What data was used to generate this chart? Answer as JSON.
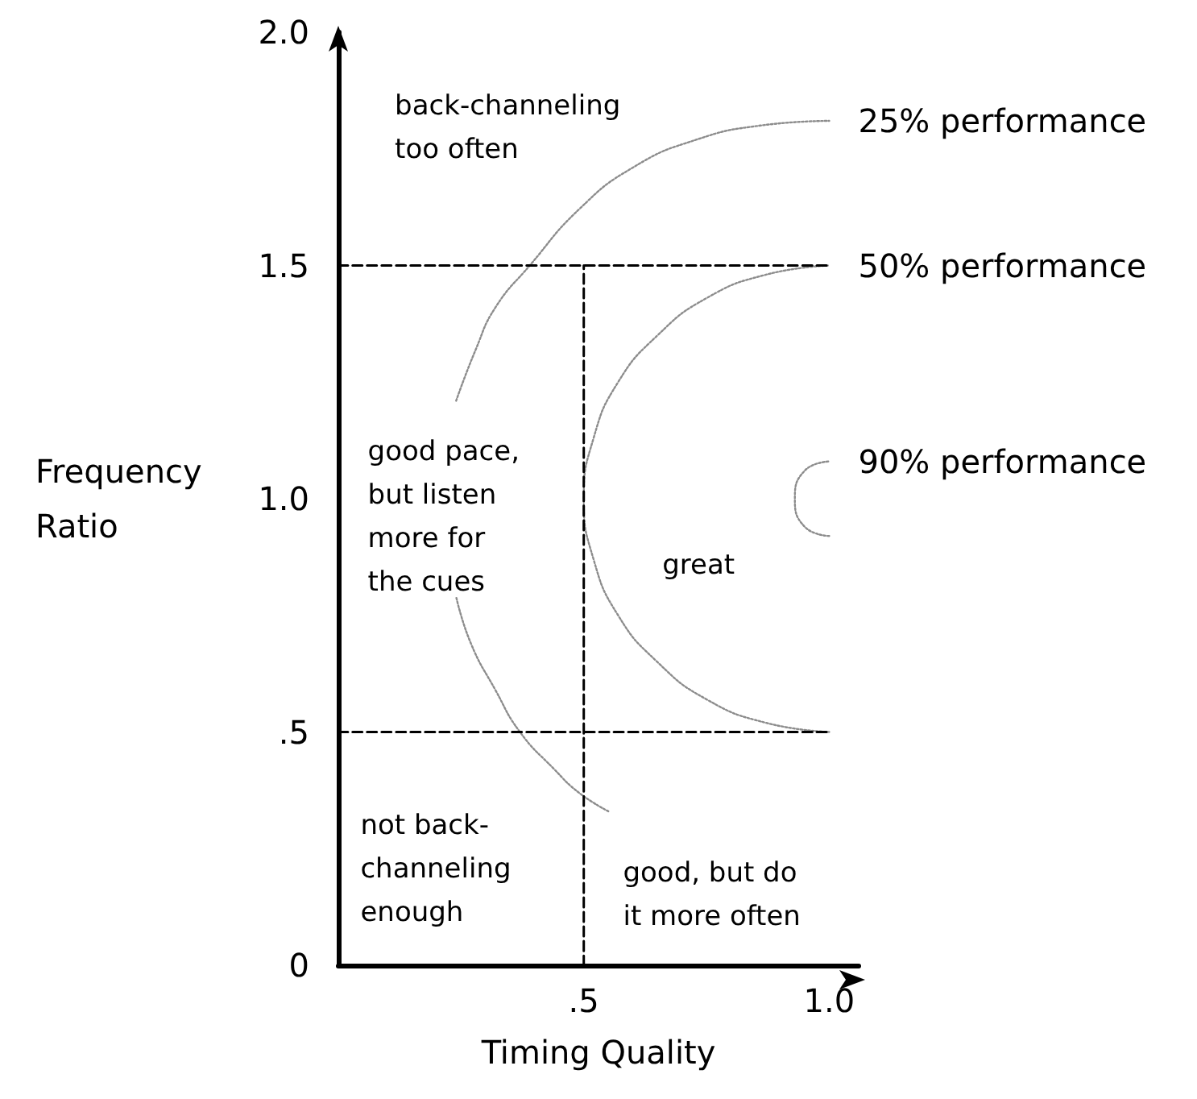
{
  "chart_data": {
    "type": "line",
    "xlabel": "Timing Quality",
    "ylabel": "Frequency\nRatio",
    "xlim": [
      0,
      1.06
    ],
    "ylim": [
      0,
      2
    ],
    "xticks": [
      {
        "value": 0.5,
        "label": ".5"
      },
      {
        "value": 1,
        "label": "1.0"
      }
    ],
    "yticks": [
      0,
      {
        "value": 0.5,
        "label": ".5"
      },
      {
        "value": 1,
        "label": "1.0"
      },
      1.5,
      {
        "value": 2,
        "label": "2.0"
      }
    ],
    "marker": "none",
    "series": [
      {
        "name": "25% performance",
        "color": "#8c8c8c",
        "line_style": "dotted",
        "x": [
          0.55,
          0.49,
          0.44,
          0.37,
          0.32,
          0.27,
          0.24,
          null,
          0.24,
          0.28,
          0.32,
          0.39,
          0.49,
          0.6,
          0.73,
          0.86,
          1.0
        ],
        "values": [
          0.33,
          0.37,
          0.42,
          0.5,
          0.59,
          0.69,
          0.79,
          null,
          1.21,
          1.32,
          1.41,
          1.5,
          1.62,
          1.71,
          1.77,
          1.8,
          1.81
        ]
      },
      {
        "name": "50% performance",
        "color": "#8c8c8c",
        "line_style": "dotted",
        "x": [
          1,
          0.87,
          0.75,
          0.65,
          0.57,
          0.52,
          0.5,
          0.52,
          0.57,
          0.65,
          0.75,
          0.87,
          1
        ],
        "values": [
          0.5,
          0.52,
          0.57,
          0.65,
          0.75,
          0.87,
          1.0,
          1.13,
          1.25,
          1.35,
          1.43,
          1.48,
          1.5
        ]
      },
      {
        "name": "90% performance",
        "color": "#8c8c8c",
        "line_style": "dotted",
        "x": [
          1,
          0.95,
          0.93,
          0.95,
          1
        ],
        "values": [
          0.92,
          0.94,
          1.0,
          1.06,
          1.08
        ]
      },
      {
        "color": "#000000",
        "line_style": "dashed",
        "x": [
          0,
          1
        ],
        "values": [
          1.5,
          1.5
        ]
      },
      {
        "color": "#000000",
        "line_style": "dashed",
        "x": [
          0,
          1
        ],
        "values": [
          0.5,
          0.5
        ]
      },
      {
        "color": "#000000",
        "line_style": "dashed",
        "x": [
          0.5,
          0.5
        ],
        "values": [
          0,
          1.5
        ]
      }
    ],
    "annotations": [
      "back-channeling\ntoo often",
      "good pace,\nbut listen\nmore for\nthe cues",
      "great",
      "not back-\nchanneling\nenough",
      "good, but do\nit more often"
    ]
  }
}
